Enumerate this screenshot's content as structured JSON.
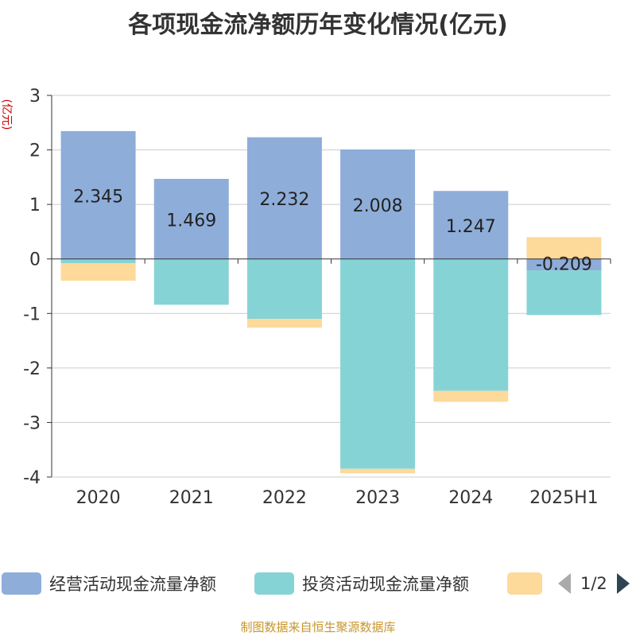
{
  "title": "各项现金流净额历年变化情况(亿元)",
  "footer": "制图数据来自恒生聚源数据库",
  "colors": {
    "operating": "#8eadd9",
    "investing": "#86d3d6",
    "financing": "#fdd99a",
    "grid": "#cccccc",
    "axis": "#333333",
    "ylabel": "#cc0000"
  },
  "legend": {
    "items": [
      "经营活动现金流量净额",
      "投资活动现金流量净额",
      ""
    ],
    "page": "1/2",
    "prev_icon": "triangle-left-icon",
    "next_icon": "triangle-right-icon"
  },
  "chart_data": {
    "type": "bar",
    "stacked": true,
    "categories": [
      "2020",
      "2021",
      "2022",
      "2023",
      "2024",
      "2025H1"
    ],
    "ylabel": "(亿元)",
    "ylim": [
      -4,
      3
    ],
    "yticks": [
      3,
      2,
      1,
      0,
      -1,
      -2,
      -3,
      -4
    ],
    "grid": true,
    "legend_position": "bottom",
    "series": [
      {
        "name": "经营活动现金流量净额",
        "values": [
          2.345,
          1.469,
          2.232,
          2.008,
          1.247,
          -0.209
        ],
        "labels": [
          "2.345",
          "1.469",
          "2.232",
          "2.008",
          "1.247",
          "-0.209"
        ]
      },
      {
        "name": "投资活动现金流量净额",
        "values": [
          -0.08,
          -0.84,
          -1.1,
          -3.85,
          -2.42,
          -0.82
        ]
      },
      {
        "name": "",
        "values": [
          -0.32,
          0,
          -0.16,
          -0.08,
          -0.2,
          0.4
        ]
      }
    ]
  }
}
